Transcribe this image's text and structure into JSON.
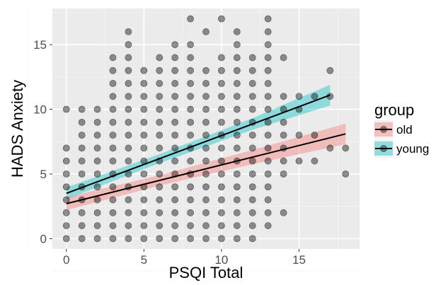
{
  "chart_data": {
    "type": "scatter",
    "title": "",
    "xlabel": "PSQI Total",
    "ylabel": "HADS Anxiety",
    "xlim": [
      -0.9,
      18.9
    ],
    "ylim": [
      -0.8,
      17.8
    ],
    "xticks": [
      0,
      5,
      10,
      15
    ],
    "yticks": [
      0,
      5,
      10,
      15
    ],
    "xtick_labels": [
      "0",
      "5",
      "10",
      "15"
    ],
    "ytick_labels": [
      "0",
      "5",
      "10",
      "15"
    ],
    "grid": true,
    "background": "#ebebeb",
    "legend": {
      "title": "group",
      "position": "right",
      "entries": [
        {
          "label": "old",
          "fill": "#f8766d"
        },
        {
          "label": "young",
          "fill": "#00bfc4"
        }
      ]
    },
    "points": [
      [
        0,
        0
      ],
      [
        0,
        1
      ],
      [
        0,
        2
      ],
      [
        0,
        3
      ],
      [
        0,
        4
      ],
      [
        0,
        5
      ],
      [
        0,
        6
      ],
      [
        0,
        7
      ],
      [
        0,
        10
      ],
      [
        1,
        0
      ],
      [
        1,
        1
      ],
      [
        1,
        2
      ],
      [
        1,
        3
      ],
      [
        1,
        4
      ],
      [
        1,
        5
      ],
      [
        1,
        6
      ],
      [
        1,
        7
      ],
      [
        1,
        8
      ],
      [
        1,
        9
      ],
      [
        1,
        10
      ],
      [
        2,
        0
      ],
      [
        2,
        1
      ],
      [
        2,
        2
      ],
      [
        2,
        3
      ],
      [
        2,
        4
      ],
      [
        2,
        5
      ],
      [
        2,
        6
      ],
      [
        2,
        7
      ],
      [
        2,
        8
      ],
      [
        2,
        9
      ],
      [
        2,
        10
      ],
      [
        3,
        0
      ],
      [
        3,
        1
      ],
      [
        3,
        2
      ],
      [
        3,
        3
      ],
      [
        3,
        4
      ],
      [
        3,
        5
      ],
      [
        3,
        6
      ],
      [
        3,
        7
      ],
      [
        3,
        8
      ],
      [
        3,
        9
      ],
      [
        3,
        10
      ],
      [
        3,
        11
      ],
      [
        3,
        12
      ],
      [
        3,
        13
      ],
      [
        3,
        14
      ],
      [
        4,
        0
      ],
      [
        4,
        1
      ],
      [
        4,
        2
      ],
      [
        4,
        3
      ],
      [
        4,
        4
      ],
      [
        4,
        5
      ],
      [
        4,
        6
      ],
      [
        4,
        7
      ],
      [
        4,
        8
      ],
      [
        4,
        9
      ],
      [
        4,
        10
      ],
      [
        4,
        11
      ],
      [
        4,
        12
      ],
      [
        4,
        13
      ],
      [
        4,
        14
      ],
      [
        4,
        15
      ],
      [
        4,
        16
      ],
      [
        5,
        0
      ],
      [
        5,
        1
      ],
      [
        5,
        2
      ],
      [
        5,
        3
      ],
      [
        5,
        4
      ],
      [
        5,
        5
      ],
      [
        5,
        6
      ],
      [
        5,
        7
      ],
      [
        5,
        8
      ],
      [
        5,
        9
      ],
      [
        5,
        10
      ],
      [
        5,
        11
      ],
      [
        5,
        12
      ],
      [
        5,
        13
      ],
      [
        6,
        0
      ],
      [
        6,
        1
      ],
      [
        6,
        2
      ],
      [
        6,
        3
      ],
      [
        6,
        4
      ],
      [
        6,
        5
      ],
      [
        6,
        6
      ],
      [
        6,
        7
      ],
      [
        6,
        8
      ],
      [
        6,
        9
      ],
      [
        6,
        10
      ],
      [
        6,
        11
      ],
      [
        6,
        12
      ],
      [
        6,
        13
      ],
      [
        6,
        14
      ],
      [
        7,
        0
      ],
      [
        7,
        1
      ],
      [
        7,
        2
      ],
      [
        7,
        3
      ],
      [
        7,
        4
      ],
      [
        7,
        5
      ],
      [
        7,
        6
      ],
      [
        7,
        7
      ],
      [
        7,
        8
      ],
      [
        7,
        9
      ],
      [
        7,
        10
      ],
      [
        7,
        11
      ],
      [
        7,
        12
      ],
      [
        7,
        13
      ],
      [
        7,
        14
      ],
      [
        7,
        15
      ],
      [
        8,
        0
      ],
      [
        8,
        1
      ],
      [
        8,
        2
      ],
      [
        8,
        3
      ],
      [
        8,
        4
      ],
      [
        8,
        5
      ],
      [
        8,
        6
      ],
      [
        8,
        7
      ],
      [
        8,
        8
      ],
      [
        8,
        9
      ],
      [
        8,
        10
      ],
      [
        8,
        11
      ],
      [
        8,
        12
      ],
      [
        8,
        13
      ],
      [
        8,
        14
      ],
      [
        8,
        15
      ],
      [
        8,
        17
      ],
      [
        9,
        0
      ],
      [
        9,
        1
      ],
      [
        9,
        2
      ],
      [
        9,
        3
      ],
      [
        9,
        4
      ],
      [
        9,
        5
      ],
      [
        9,
        6
      ],
      [
        9,
        7
      ],
      [
        9,
        8
      ],
      [
        9,
        9
      ],
      [
        9,
        10
      ],
      [
        9,
        11
      ],
      [
        9,
        12
      ],
      [
        9,
        13
      ],
      [
        9,
        16
      ],
      [
        10,
        0
      ],
      [
        10,
        1
      ],
      [
        10,
        2
      ],
      [
        10,
        3
      ],
      [
        10,
        4
      ],
      [
        10,
        5
      ],
      [
        10,
        6
      ],
      [
        10,
        7
      ],
      [
        10,
        8
      ],
      [
        10,
        9
      ],
      [
        10,
        10
      ],
      [
        10,
        11
      ],
      [
        10,
        12
      ],
      [
        10,
        13
      ],
      [
        10,
        14
      ],
      [
        10,
        17
      ],
      [
        11,
        0
      ],
      [
        11,
        1
      ],
      [
        11,
        2
      ],
      [
        11,
        3
      ],
      [
        11,
        4
      ],
      [
        11,
        5
      ],
      [
        11,
        6
      ],
      [
        11,
        7
      ],
      [
        11,
        8
      ],
      [
        11,
        9
      ],
      [
        11,
        10
      ],
      [
        11,
        11
      ],
      [
        11,
        12
      ],
      [
        11,
        13
      ],
      [
        11,
        14
      ],
      [
        11,
        15
      ],
      [
        11,
        16
      ],
      [
        12,
        0
      ],
      [
        12,
        1
      ],
      [
        12,
        2
      ],
      [
        12,
        3
      ],
      [
        12,
        4
      ],
      [
        12,
        5
      ],
      [
        12,
        6
      ],
      [
        12,
        7
      ],
      [
        12,
        8
      ],
      [
        12,
        9
      ],
      [
        12,
        10
      ],
      [
        12,
        11
      ],
      [
        12,
        12
      ],
      [
        12,
        13
      ],
      [
        12,
        14
      ],
      [
        13,
        1
      ],
      [
        13,
        2
      ],
      [
        13,
        3
      ],
      [
        13,
        4
      ],
      [
        13,
        5
      ],
      [
        13,
        6
      ],
      [
        13,
        7
      ],
      [
        13,
        8
      ],
      [
        13,
        9
      ],
      [
        13,
        10
      ],
      [
        13,
        11
      ],
      [
        13,
        12
      ],
      [
        13,
        13
      ],
      [
        13,
        14
      ],
      [
        13,
        15
      ],
      [
        13,
        16
      ],
      [
        13,
        17
      ],
      [
        14,
        2
      ],
      [
        14,
        5
      ],
      [
        14,
        6
      ],
      [
        14,
        7
      ],
      [
        14,
        8
      ],
      [
        14,
        9
      ],
      [
        14,
        10
      ],
      [
        14,
        11
      ],
      [
        14,
        14
      ],
      [
        15,
        6
      ],
      [
        15,
        8
      ],
      [
        15,
        10
      ],
      [
        15,
        11
      ],
      [
        16,
        6
      ],
      [
        16,
        8
      ],
      [
        16,
        11
      ],
      [
        17,
        7
      ],
      [
        17,
        11
      ],
      [
        17,
        13
      ],
      [
        18,
        5
      ],
      [
        18,
        7
      ]
    ],
    "series": [
      {
        "name": "old",
        "fill": "#f8766d",
        "fit": {
          "x": [
            0,
            18
          ],
          "y": [
            2.7,
            8.1
          ]
        },
        "band": {
          "lower_offsets": [
            0.5,
            0.4,
            0.55,
            0.8
          ],
          "upper_offsets": [
            0.5,
            0.4,
            0.55,
            0.8
          ],
          "x": [
            0,
            6,
            12,
            18
          ]
        }
      },
      {
        "name": "young",
        "fill": "#00bfc4",
        "fit": {
          "x": [
            0,
            17
          ],
          "y": [
            3.5,
            11.1
          ]
        },
        "band": {
          "lower_offsets": [
            0.45,
            0.35,
            0.45,
            0.8
          ],
          "upper_offsets": [
            0.45,
            0.35,
            0.45,
            0.8
          ],
          "x": [
            0,
            6,
            12,
            17
          ]
        }
      }
    ]
  }
}
